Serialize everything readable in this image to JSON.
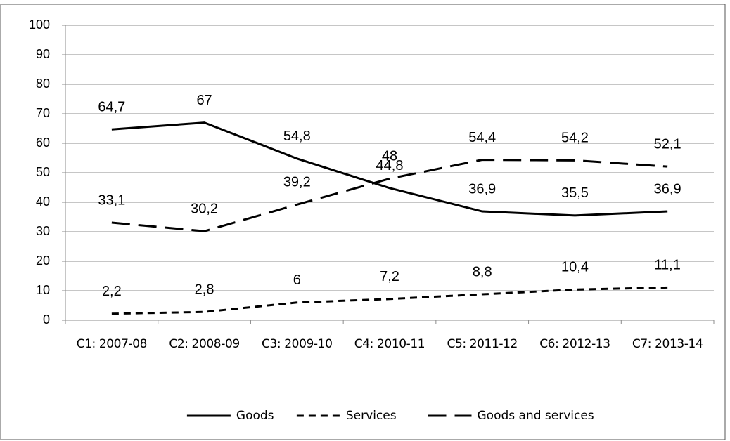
{
  "chart_data": {
    "type": "line",
    "categories": [
      "C1: 2007-08",
      "C2: 2008-09",
      "C3: 2009-10",
      "C4: 2010-11",
      "C5: 2011-12",
      "C6: 2012-13",
      "C7: 2013-14"
    ],
    "series": [
      {
        "name": "Goods",
        "color": "#000000",
        "line_style": "solid",
        "values": [
          64.7,
          67,
          54.8,
          44.8,
          36.9,
          35.5,
          36.9
        ],
        "value_labels": [
          "64,7",
          "67",
          "54,8",
          "44,8",
          "36,9",
          "35,5",
          "36,9"
        ]
      },
      {
        "name": "Services",
        "color": "#000000",
        "line_style": "short-dash",
        "values": [
          2.2,
          2.8,
          6,
          7.2,
          8.8,
          10.4,
          11.1
        ],
        "value_labels": [
          "2,2",
          "2,8",
          "6",
          "7,2",
          "8,8",
          "10,4",
          "11,1"
        ]
      },
      {
        "name": "Goods and services",
        "color": "#000000",
        "line_style": "long-dash",
        "values": [
          33.1,
          30.2,
          39.2,
          48,
          54.4,
          54.2,
          52.1
        ],
        "value_labels": [
          "33,1",
          "30,2",
          "39,2",
          "48",
          "54,4",
          "54,2",
          "52,1"
        ]
      }
    ],
    "ylim": [
      0,
      100
    ],
    "yticks": [
      0,
      10,
      20,
      30,
      40,
      50,
      60,
      70,
      80,
      90,
      100
    ],
    "grid": true,
    "legend": "bottom"
  }
}
